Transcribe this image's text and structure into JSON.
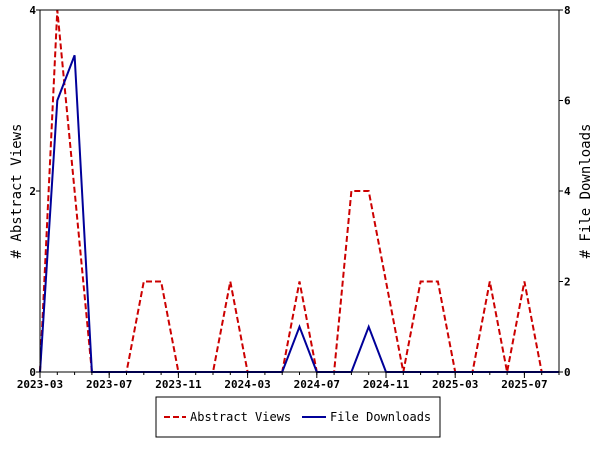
{
  "chart_data": {
    "type": "line",
    "x_tick_labels": [
      "2023-03",
      "2023-07",
      "2023-11",
      "2024-03",
      "2024-07",
      "2024-11",
      "2025-03",
      "2025-07"
    ],
    "x_range": [
      "2023-03",
      "2025-09"
    ],
    "y_left": {
      "label": "# Abstract Views",
      "range": [
        0,
        4
      ],
      "ticks": [
        0,
        2,
        4
      ]
    },
    "y_right": {
      "label": "# File Downloads",
      "range": [
        0,
        8
      ],
      "ticks": [
        0,
        2,
        4,
        6,
        8
      ]
    },
    "grid": false,
    "legend_position": "bottom-center",
    "series": [
      {
        "name": "Abstract Views",
        "axis": "left",
        "color": "#cc0000",
        "style": "dashed",
        "points": [
          [
            "2023-03",
            0
          ],
          [
            "2023-04",
            4
          ],
          [
            "2023-05",
            2
          ],
          [
            "2023-06",
            0
          ],
          [
            "2023-07",
            0
          ],
          [
            "2023-08",
            0
          ],
          [
            "2023-09",
            1
          ],
          [
            "2023-10",
            1
          ],
          [
            "2023-11",
            0
          ],
          [
            "2023-12",
            0
          ],
          [
            "2024-01",
            0
          ],
          [
            "2024-02",
            1
          ],
          [
            "2024-03",
            0
          ],
          [
            "2024-04",
            0
          ],
          [
            "2024-05",
            0
          ],
          [
            "2024-06",
            1
          ],
          [
            "2024-07",
            0
          ],
          [
            "2024-08",
            0
          ],
          [
            "2024-09",
            2
          ],
          [
            "2024-10",
            2
          ],
          [
            "2024-11",
            1
          ],
          [
            "2024-12",
            0
          ],
          [
            "2025-01",
            1
          ],
          [
            "2025-02",
            1
          ],
          [
            "2025-03",
            0
          ],
          [
            "2025-04",
            0
          ],
          [
            "2025-05",
            1
          ],
          [
            "2025-06",
            0
          ],
          [
            "2025-07",
            1
          ],
          [
            "2025-08",
            0
          ],
          [
            "2025-09",
            0
          ]
        ]
      },
      {
        "name": "File Downloads",
        "axis": "right",
        "color": "#000099",
        "style": "solid",
        "points": [
          [
            "2023-03",
            0
          ],
          [
            "2023-04",
            6
          ],
          [
            "2023-05",
            7
          ],
          [
            "2023-06",
            0
          ],
          [
            "2023-07",
            0
          ],
          [
            "2023-08",
            0
          ],
          [
            "2023-09",
            0
          ],
          [
            "2023-10",
            0
          ],
          [
            "2023-11",
            0
          ],
          [
            "2023-12",
            0
          ],
          [
            "2024-01",
            0
          ],
          [
            "2024-02",
            0
          ],
          [
            "2024-03",
            0
          ],
          [
            "2024-04",
            0
          ],
          [
            "2024-05",
            0
          ],
          [
            "2024-06",
            1
          ],
          [
            "2024-07",
            0
          ],
          [
            "2024-08",
            0
          ],
          [
            "2024-09",
            0
          ],
          [
            "2024-10",
            1
          ],
          [
            "2024-11",
            0
          ],
          [
            "2024-12",
            0
          ],
          [
            "2025-01",
            0
          ],
          [
            "2025-02",
            0
          ],
          [
            "2025-03",
            0
          ],
          [
            "2025-04",
            0
          ],
          [
            "2025-05",
            0
          ],
          [
            "2025-06",
            0
          ],
          [
            "2025-07",
            0
          ],
          [
            "2025-08",
            0
          ],
          [
            "2025-09",
            0
          ]
        ]
      }
    ]
  }
}
